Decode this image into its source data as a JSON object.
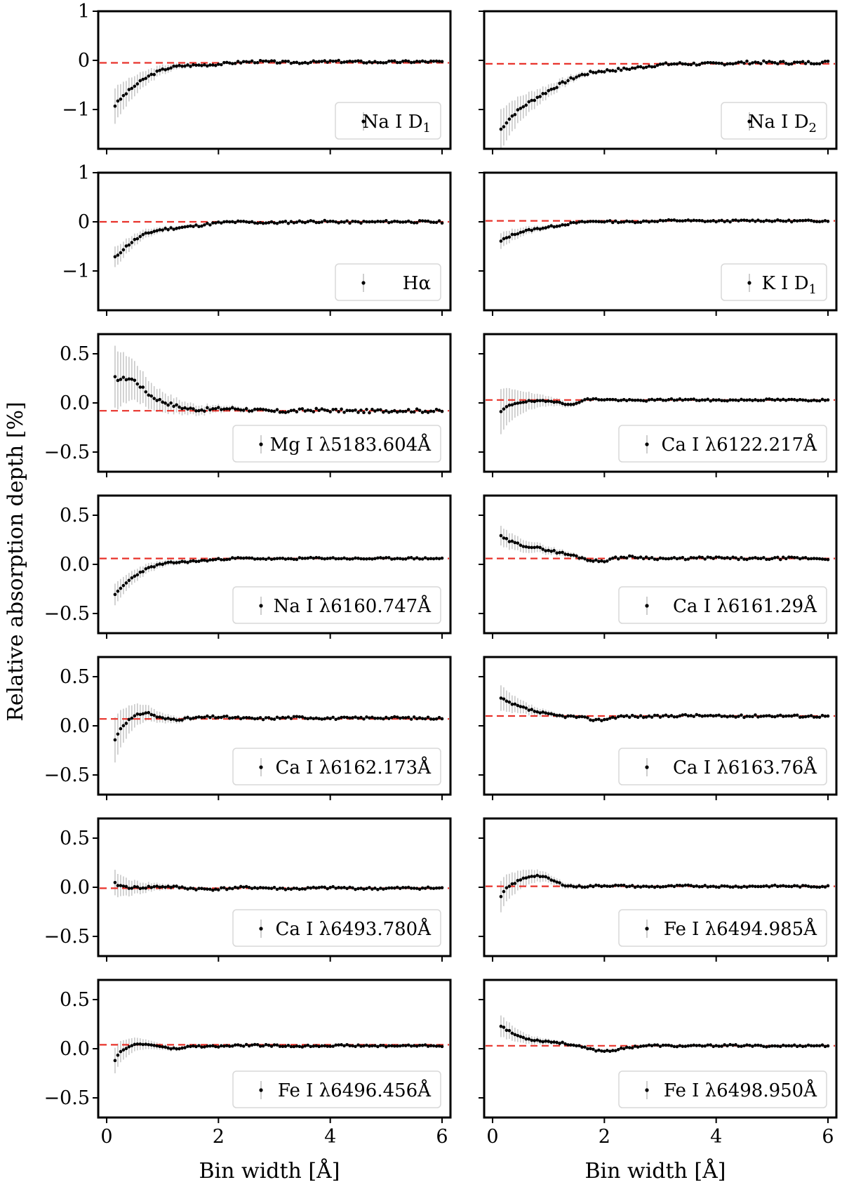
{
  "figure": {
    "ylabel": "Relative absorption depth [%]",
    "xlabel": "Bin width [Å]"
  },
  "chart_data": {
    "type": "scatter",
    "layout": "7 rows × 2 columns of panels sharing the x axis",
    "xlabel": "Bin width [Å]",
    "ylabel": "Relative absorption depth [%]",
    "xlim": [
      0,
      6
    ],
    "xticks": [
      0,
      2,
      4,
      6
    ],
    "reference_line": "dashed red horizontal line",
    "colors": {
      "points": "#000000",
      "errorbars": "#c8c8c8",
      "reference": "#e8322a"
    },
    "panels": [
      {
        "id": "na-d1",
        "row": 0,
        "col": 0,
        "label": "Na I D",
        "sub": "1",
        "ylim": [
          -1.8,
          1
        ],
        "yticks": [
          -1,
          0,
          1
        ],
        "yticklabels": [
          "−1",
          "0",
          "1"
        ],
        "ref": -0.05,
        "profile": {
          "p0": -0.9,
          "end": -0.03,
          "tau": 0.55,
          "err0": 0.35,
          "errTau": 0.6,
          "errFloor": 0.01,
          "wave": 0.04,
          "seed": 3
        }
      },
      {
        "id": "na-d2",
        "row": 0,
        "col": 1,
        "label": "Na I D",
        "sub": "2",
        "ylim": [
          -1.8,
          1
        ],
        "yticks": [
          -1,
          0,
          1
        ],
        "yticklabels": [
          "−1",
          "0",
          "1"
        ],
        "ref": -0.07,
        "profile": {
          "p0": -1.45,
          "end": -0.04,
          "tau": 0.9,
          "err0": 0.4,
          "errTau": 0.7,
          "errFloor": 0.01,
          "wave": 0.05,
          "seed": 7
        }
      },
      {
        "id": "h-alpha",
        "row": 1,
        "col": 0,
        "label": "Hα",
        "sub": "",
        "ylim": [
          -1.8,
          1
        ],
        "yticks": [
          -1,
          0,
          1
        ],
        "yticklabels": [
          "−1",
          "0",
          "1"
        ],
        "ref": 0.0,
        "profile": {
          "p0": -0.7,
          "end": 0.0,
          "tau": 0.6,
          "err0": 0.2,
          "errTau": 0.6,
          "errFloor": 0.01,
          "wave": 0.04,
          "seed": 11
        }
      },
      {
        "id": "k-d1",
        "row": 1,
        "col": 1,
        "label": "K I D",
        "sub": "1",
        "ylim": [
          -1.8,
          1
        ],
        "yticks": [
          -1,
          0,
          1
        ],
        "yticklabels": [
          "−1",
          "0",
          "1"
        ],
        "ref": 0.02,
        "profile": {
          "p0": -0.42,
          "end": 0.02,
          "tau": 0.6,
          "err0": 0.15,
          "errTau": 0.6,
          "errFloor": 0.01,
          "wave": 0.03,
          "seed": 13
        }
      },
      {
        "id": "mg-5183",
        "row": 2,
        "col": 0,
        "label": "Mg I λ5183.604Å",
        "sub": "",
        "ylim": [
          -0.7,
          0.7
        ],
        "yticks": [
          -0.5,
          0,
          0.5
        ],
        "yticklabels": [
          "−0.5",
          "0.0",
          "0.5"
        ],
        "ref": -0.08,
        "profile": {
          "p0": 0.25,
          "end": -0.08,
          "tau": 0.6,
          "bump": 0.12,
          "bumpAt": 0.45,
          "bumpW": 0.25,
          "err0": 0.3,
          "errTau": 0.7,
          "errFloor": 0.015,
          "wave": 0.03,
          "seed": 17
        }
      },
      {
        "id": "ca-6122",
        "row": 2,
        "col": 1,
        "label": "Ca I λ6122.217Å",
        "sub": "",
        "ylim": [
          -0.7,
          0.7
        ],
        "yticks": [
          -0.5,
          0,
          0.5
        ],
        "yticklabels": [
          "−0.5",
          "0.0",
          "0.5"
        ],
        "ref": 0.03,
        "profile": {
          "p0": -0.1,
          "end": 0.03,
          "tau": 0.25,
          "dip": -0.05,
          "dipAt": 1.4,
          "dipW": 0.15,
          "err0": 0.22,
          "errTau": 0.5,
          "errFloor": 0.01,
          "wave": 0.015,
          "seed": 19
        }
      },
      {
        "id": "na-6160",
        "row": 3,
        "col": 0,
        "label": "Na I λ6160.747Å",
        "sub": "",
        "ylim": [
          -0.7,
          0.7
        ],
        "yticks": [
          -0.5,
          0,
          0.5
        ],
        "yticklabels": [
          "−0.5",
          "0.0",
          "0.5"
        ],
        "ref": 0.06,
        "profile": {
          "p0": -0.3,
          "end": 0.06,
          "tau": 0.5,
          "err0": 0.1,
          "errTau": 0.6,
          "errFloor": 0.01,
          "wave": 0.015,
          "seed": 23
        }
      },
      {
        "id": "ca-6161",
        "row": 3,
        "col": 1,
        "label": "Ca I λ6161.29Å",
        "sub": "",
        "ylim": [
          -0.7,
          0.7
        ],
        "yticks": [
          -0.5,
          0,
          0.5
        ],
        "yticklabels": [
          "−0.5",
          "0.0",
          "0.5"
        ],
        "ref": 0.06,
        "profile": {
          "p0": 0.3,
          "end": 0.06,
          "tau": 0.7,
          "dip": -0.04,
          "dipAt": 1.9,
          "dipW": 0.3,
          "err0": 0.09,
          "errTau": 0.8,
          "errFloor": 0.01,
          "wave": 0.02,
          "seed": 29
        }
      },
      {
        "id": "ca-6162",
        "row": 4,
        "col": 0,
        "label": "Ca I λ6162.173Å",
        "sub": "",
        "ylim": [
          -0.7,
          0.7
        ],
        "yticks": [
          -0.5,
          0,
          0.5
        ],
        "yticklabels": [
          "−0.5",
          "0.0",
          "0.5"
        ],
        "ref": 0.07,
        "profile": {
          "p0": -0.15,
          "end": 0.08,
          "tau": 0.15,
          "bump": 0.05,
          "bumpAt": 0.7,
          "bumpW": 0.2,
          "err0": 0.22,
          "errTau": 0.5,
          "errFloor": 0.01,
          "wave": 0.02,
          "seed": 31
        }
      },
      {
        "id": "ca-6163",
        "row": 4,
        "col": 1,
        "label": "Ca I λ6163.76Å",
        "sub": "",
        "ylim": [
          -0.7,
          0.7
        ],
        "yticks": [
          -0.5,
          0,
          0.5
        ],
        "yticklabels": [
          "−0.5",
          "0.0",
          "0.5"
        ],
        "ref": 0.1,
        "profile": {
          "p0": 0.28,
          "end": 0.1,
          "tau": 0.4,
          "dip": -0.05,
          "dipAt": 1.9,
          "dipW": 0.3,
          "err0": 0.12,
          "errTau": 0.5,
          "errFloor": 0.01,
          "wave": 0.02,
          "seed": 37
        }
      },
      {
        "id": "ca-6493",
        "row": 5,
        "col": 0,
        "label": "Ca I λ6493.780Å",
        "sub": "",
        "ylim": [
          -0.7,
          0.7
        ],
        "yticks": [
          -0.5,
          0,
          0.5
        ],
        "yticklabels": [
          "−0.5",
          "0.0",
          "0.5"
        ],
        "ref": -0.01,
        "profile": {
          "p0": 0.05,
          "end": -0.01,
          "tau": 0.3,
          "err0": 0.12,
          "errTau": 0.5,
          "errFloor": 0.01,
          "wave": 0.02,
          "seed": 41
        }
      },
      {
        "id": "fe-6494",
        "row": 5,
        "col": 1,
        "label": "Fe I λ6494.985Å",
        "sub": "",
        "ylim": [
          -0.7,
          0.7
        ],
        "yticks": [
          -0.5,
          0,
          0.5
        ],
        "yticklabels": [
          "−0.5",
          "0.0",
          "0.5"
        ],
        "ref": 0.01,
        "profile": {
          "p0": -0.1,
          "end": 0.01,
          "tau": 0.1,
          "bump": 0.1,
          "bumpAt": 0.8,
          "bumpW": 0.4,
          "err0": 0.15,
          "errTau": 0.6,
          "errFloor": 0.01,
          "wave": 0.015,
          "seed": 43
        }
      },
      {
        "id": "fe-6496",
        "row": 6,
        "col": 0,
        "label": "Fe I λ6496.456Å",
        "sub": "",
        "ylim": [
          -0.7,
          0.7
        ],
        "yticks": [
          -0.5,
          0,
          0.5
        ],
        "yticklabels": [
          "−0.5",
          "0.0",
          "0.5"
        ],
        "ref": 0.04,
        "profile": {
          "p0": -0.13,
          "end": 0.03,
          "tau": 0.12,
          "bump": 0.03,
          "bumpAt": 0.5,
          "bumpW": 0.3,
          "dip": -0.04,
          "dipAt": 1.2,
          "dipW": 0.25,
          "err0": 0.12,
          "errTau": 0.5,
          "errFloor": 0.01,
          "wave": 0.015,
          "seed": 47
        }
      },
      {
        "id": "fe-6498",
        "row": 6,
        "col": 1,
        "label": "Fe I λ6498.950Å",
        "sub": "",
        "ylim": [
          -0.7,
          0.7
        ],
        "yticks": [
          -0.5,
          0,
          0.5
        ],
        "yticklabels": [
          "−0.5",
          "0.0",
          "0.5"
        ],
        "ref": 0.03,
        "profile": {
          "p0": 0.24,
          "end": 0.03,
          "tau": 0.5,
          "dip": -0.05,
          "dipAt": 2.0,
          "dipW": 0.5,
          "err0": 0.1,
          "errTau": 0.5,
          "errFloor": 0.01,
          "wave": 0.015,
          "seed": 53
        }
      }
    ]
  }
}
